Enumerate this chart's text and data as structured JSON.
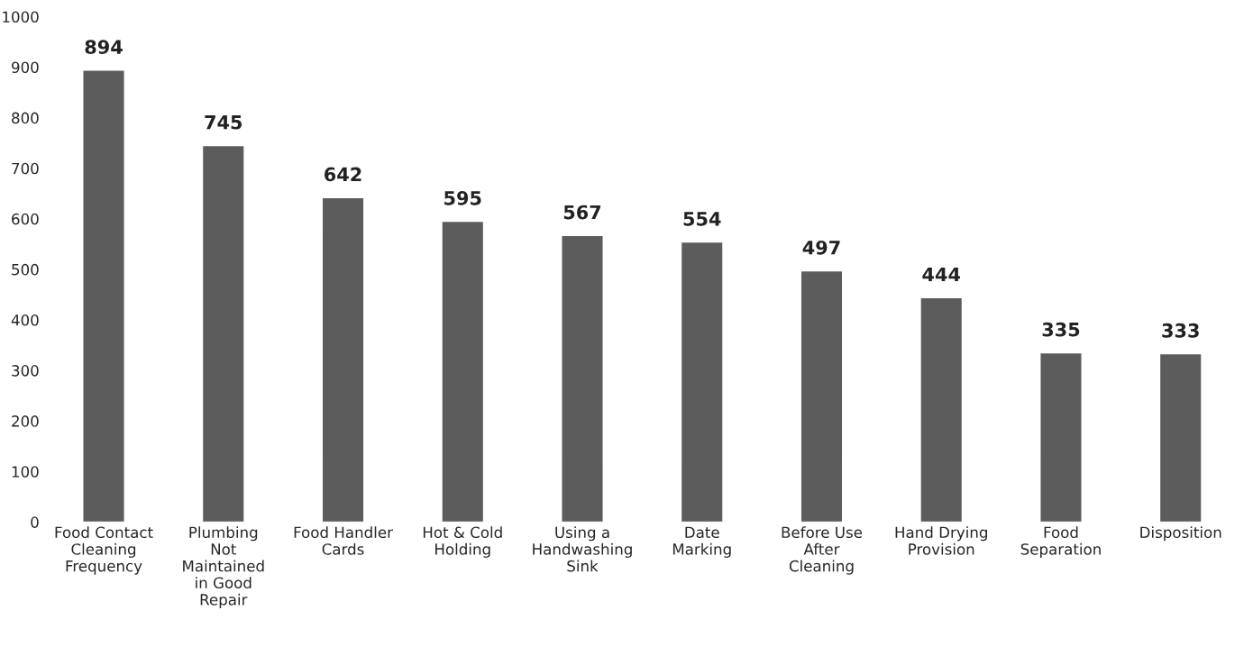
{
  "chart_data": {
    "type": "bar",
    "categories": [
      "Food Contact\nCleaning\nFrequency",
      "Plumbing\nNot\nMaintained\nin Good\nRepair",
      "Food Handler\nCards",
      "Hot & Cold\nHolding",
      "Using a\nHandwashing\nSink",
      "Date\nMarking",
      "Before Use\nAfter\nCleaning",
      "Hand Drying\nProvision",
      "Food\nSeparation",
      "Disposition"
    ],
    "values": [
      894,
      745,
      642,
      595,
      567,
      554,
      497,
      444,
      335,
      333
    ],
    "color": "#5c5c5c",
    "ylim": [
      0,
      1000
    ],
    "yticks": [
      0,
      100,
      200,
      300,
      400,
      500,
      600,
      700,
      800,
      900,
      1000
    ],
    "data_labels": true
  }
}
